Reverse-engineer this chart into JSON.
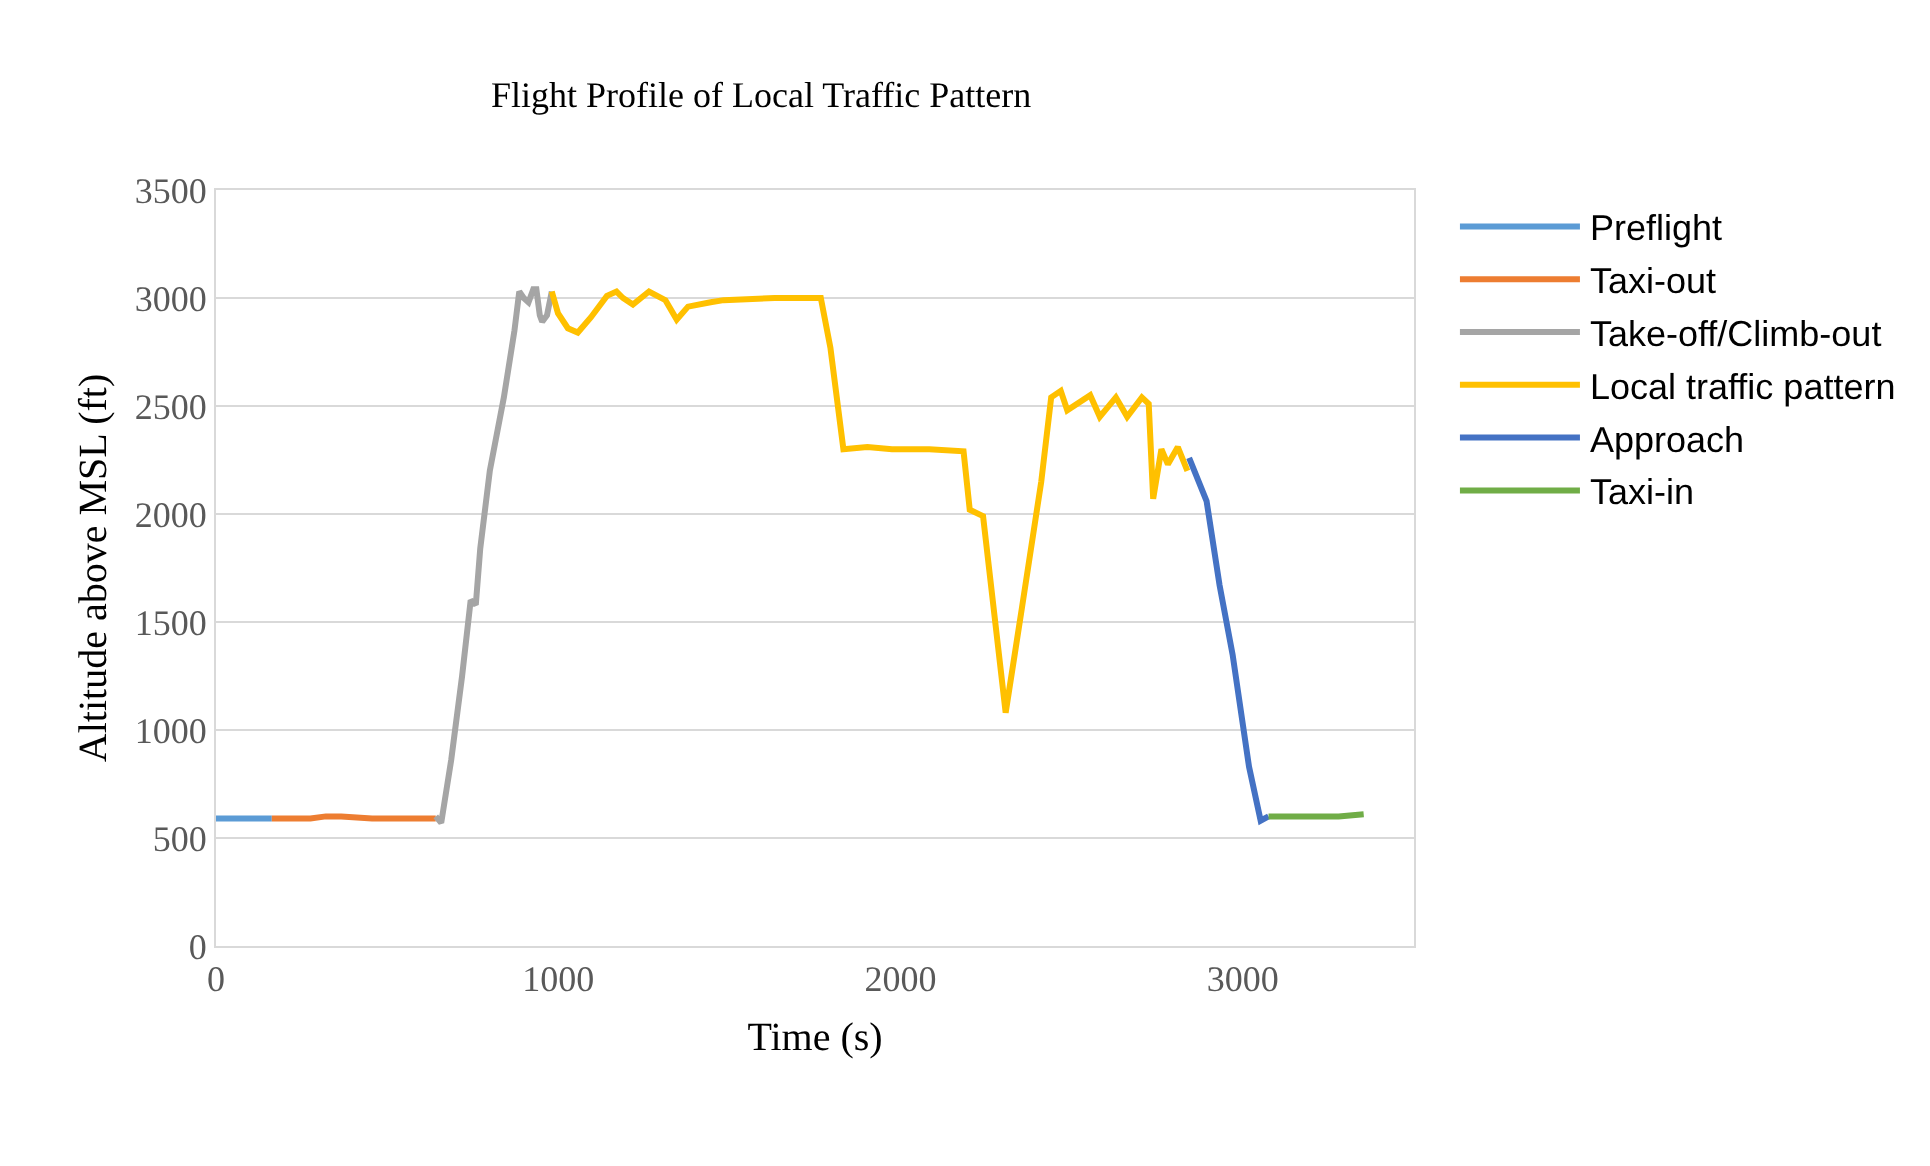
{
  "chart_data": {
    "type": "line",
    "title": "Flight Profile of Local Traffic Pattern",
    "xlabel": "Time (s)",
    "ylabel": "Altitude above MSL (ft)",
    "xlim": [
      0,
      3500
    ],
    "xticks": [
      0,
      1000,
      2000,
      3000
    ],
    "ylim": [
      0,
      3500
    ],
    "yticks": [
      0,
      500,
      1000,
      1500,
      2000,
      2500,
      3000,
      3500
    ],
    "grid": "y",
    "legend": "right",
    "marker": "none",
    "line_style": "solid",
    "series": [
      {
        "name": "Preflight",
        "color": "#5b9bd5",
        "x": [
          0,
          163
        ],
        "values": [
          590,
          590
        ]
      },
      {
        "name": "Taxi-out",
        "color": "#ed7d31",
        "x": [
          163,
          276,
          321,
          366,
          456,
          547,
          642
        ],
        "values": [
          590,
          590,
          600,
          600,
          590,
          590,
          590
        ]
      },
      {
        "name": "Take-off/Climb-out",
        "color": "#a5a5a5",
        "x": [
          642,
          658,
          687,
          719,
          744,
          759,
          772,
          800,
          841,
          872,
          886,
          899,
          913,
          927,
          936,
          946,
          953,
          967,
          981
        ],
        "values": [
          600,
          570,
          860,
          1250,
          1600,
          1580,
          1840,
          2200,
          2540,
          2850,
          3030,
          3000,
          2980,
          3040,
          3040,
          2920,
          2890,
          2920,
          3030
        ]
      },
      {
        "name": "Local traffic pattern",
        "color": "#ffc000",
        "x": [
          981,
          999,
          1028,
          1057,
          1095,
          1142,
          1170,
          1189,
          1218,
          1265,
          1313,
          1346,
          1379,
          1445,
          1483,
          1632,
          1767,
          1795,
          1833,
          1903,
          1975,
          2084,
          2184,
          2202,
          2241,
          2307,
          2355,
          2411,
          2440,
          2468,
          2487,
          2554,
          2582,
          2629,
          2662,
          2705,
          2725,
          2738,
          2762,
          2781,
          2810,
          2838
        ],
        "values": [
          3030,
          2930,
          2860,
          2840,
          2910,
          3010,
          3030,
          3000,
          2970,
          3030,
          2990,
          2900,
          2960,
          2980,
          2990,
          3000,
          3000,
          2770,
          2300,
          2310,
          2300,
          2300,
          2290,
          2020,
          1990,
          1080,
          1570,
          2150,
          2540,
          2570,
          2480,
          2550,
          2450,
          2540,
          2450,
          2540,
          2510,
          2070,
          2300,
          2230,
          2310,
          2200
        ]
      },
      {
        "name": "Approach",
        "color": "#4472c4",
        "x": [
          2843,
          2894,
          2932,
          2970,
          3018,
          3052,
          3075
        ],
        "values": [
          2260,
          2060,
          1670,
          1350,
          830,
          580,
          600
        ]
      },
      {
        "name": "Taxi-in",
        "color": "#70ad47",
        "x": [
          3075,
          3150,
          3220,
          3280,
          3353
        ],
        "values": [
          600,
          600,
          600,
          600,
          610
        ]
      }
    ]
  }
}
